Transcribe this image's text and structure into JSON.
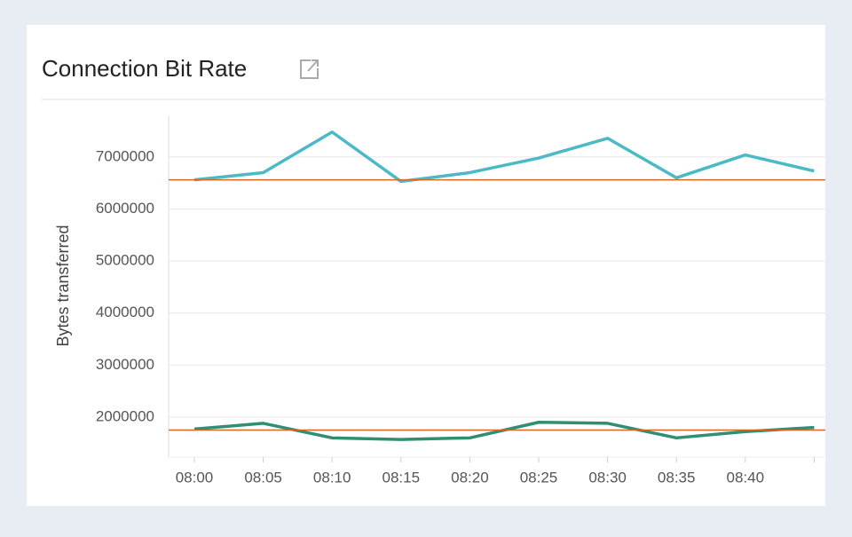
{
  "chart_data": {
    "type": "line",
    "title": "Connection Bit Rate",
    "ylabel": "Bytes transferred",
    "categories": [
      "08:00",
      "08:05",
      "08:10",
      "08:15",
      "08:20",
      "08:25",
      "08:30",
      "08:35",
      "08:40",
      null
    ],
    "series": [
      {
        "color": "#4bbac6",
        "values": [
          6560000,
          6700000,
          7480000,
          6530000,
          6700000,
          6980000,
          7360000,
          6600000,
          7040000,
          6730000
        ]
      },
      {
        "color": "#2f8f72",
        "values": [
          1770000,
          1880000,
          1600000,
          1570000,
          1600000,
          1900000,
          1880000,
          1600000,
          1720000,
          1800000
        ]
      }
    ],
    "reference_lines": [
      {
        "value": 6560000,
        "color": "#d9661f"
      },
      {
        "value": 1750000,
        "color": "#d9661f"
      }
    ],
    "ylim": [
      1230000,
      7800000
    ],
    "yticks": [
      2000000,
      3000000,
      4000000,
      5000000,
      6000000,
      7000000
    ],
    "grid": true
  }
}
